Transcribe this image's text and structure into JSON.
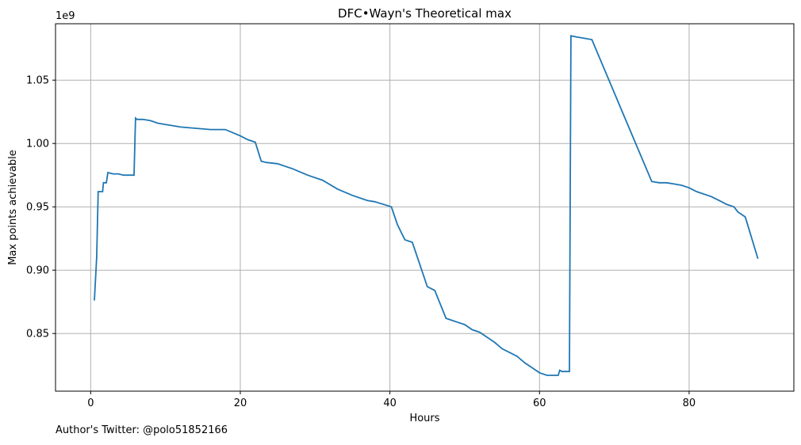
{
  "chart_data": {
    "type": "line",
    "title": "DFC•Wayn's Theoretical max",
    "xlabel": "Hours",
    "ylabel": "Max points achievable",
    "y_offset_label": "1e9",
    "xlim": [
      -4.7,
      94
    ],
    "ylim": [
      0.8045,
      1.0945
    ],
    "x_ticks": [
      0,
      20,
      40,
      60,
      80
    ],
    "y_ticks": [
      0.85,
      0.9,
      0.95,
      1.0,
      1.05
    ],
    "y_tick_labels": [
      "0.85",
      "0.90",
      "0.95",
      "1.00",
      "1.05"
    ],
    "grid": true,
    "line_color": "#1f77b4",
    "series": [
      {
        "x": [
          0.5,
          0.8,
          1.0,
          1.2,
          1.6,
          1.7,
          2.1,
          2.3,
          3.0,
          3.7,
          4.4,
          5.0,
          5.3,
          5.8,
          6.0,
          6.2,
          7.0,
          8.0,
          9.0,
          10.0,
          11.0,
          12.0,
          14.0,
          16.0,
          18.0,
          20.0,
          21.0,
          22.0,
          22.8,
          23.5,
          25.0,
          27.0,
          29.0,
          31.0,
          33.0,
          35.0,
          37.0,
          38.0,
          40.2,
          41.0,
          42.0,
          43.0,
          45.0,
          46.0,
          47.5,
          48.0,
          49.0,
          50.0,
          51.0,
          52.0,
          53.0,
          54.0,
          55.0,
          56.0,
          57.0,
          58.0,
          59.0,
          60.0,
          61.0,
          62.5,
          62.7,
          63.0,
          63.5,
          64.0,
          64.2,
          65.0,
          66.0,
          67.0,
          71.0,
          75.0,
          76.0,
          77.0,
          78.0,
          79.0,
          80.0,
          81.0,
          83.0,
          84.0,
          85.0,
          86.0,
          86.5,
          87.0,
          87.5,
          89.2
        ],
        "y": [
          0.876,
          0.91,
          0.962,
          0.962,
          0.962,
          0.969,
          0.969,
          0.977,
          0.976,
          0.976,
          0.975,
          0.975,
          0.975,
          0.975,
          1.02,
          1.019,
          1.019,
          1.018,
          1.016,
          1.015,
          1.014,
          1.013,
          1.012,
          1.011,
          1.011,
          1.006,
          1.003,
          1.001,
          0.986,
          0.985,
          0.984,
          0.98,
          0.975,
          0.971,
          0.964,
          0.959,
          0.955,
          0.954,
          0.95,
          0.936,
          0.924,
          0.922,
          0.887,
          0.884,
          0.862,
          0.861,
          0.859,
          0.857,
          0.853,
          0.851,
          0.847,
          0.843,
          0.838,
          0.835,
          0.832,
          0.827,
          0.823,
          0.819,
          0.817,
          0.817,
          0.821,
          0.82,
          0.82,
          0.82,
          1.085,
          1.084,
          1.083,
          1.082,
          1.026,
          0.97,
          0.969,
          0.969,
          0.968,
          0.967,
          0.965,
          0.962,
          0.958,
          0.955,
          0.952,
          0.95,
          0.946,
          0.944,
          0.942,
          0.909
        ]
      }
    ]
  },
  "footer": {
    "text": "Author's Twitter: @polo51852166"
  }
}
